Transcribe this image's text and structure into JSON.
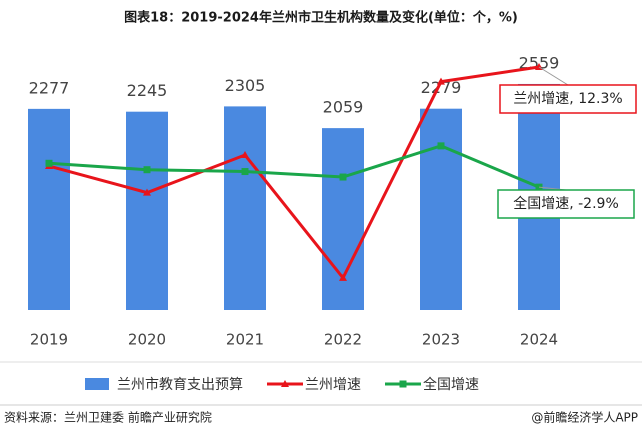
{
  "chart_data": {
    "type": "bar_line",
    "title": "图表18：2019-2024年兰州市卫生机构数量及变化(单位：个，%)",
    "categories": [
      "2019",
      "2020",
      "2021",
      "2022",
      "2023",
      "2024"
    ],
    "ylim": [
      0,
      3000
    ],
    "y2lim": [
      -14.2,
      14.7
    ],
    "y3lim": [
      -16.3,
      12.6
    ],
    "series": [
      {
        "name": "兰州市教育支出预算",
        "type": "bar",
        "color": "#4a89e0",
        "values": [
          2277,
          2245,
          2305,
          2059,
          2279,
          2559
        ]
      },
      {
        "name": "兰州增速",
        "type": "line",
        "axis": "y2",
        "marker": "triangle",
        "color": "#e8141b",
        "values": [
          1.5,
          -1.4,
          2.7,
          -10.7,
          10.7,
          12.3
        ]
      },
      {
        "name": "全国增速",
        "type": "line",
        "axis": "y3",
        "marker": "square",
        "color": "#1aa64a",
        "values": [
          -0.3,
          -1.0,
          -1.2,
          -1.8,
          1.6,
          -2.9
        ]
      }
    ],
    "annotations": [
      {
        "text": "兰州增速, 12.3%",
        "series": 1,
        "index": 5
      },
      {
        "text": "全国增速, -2.9%",
        "series": 2,
        "index": 5
      }
    ],
    "source": "资料来源：兰州卫建委 前瞻产业研究院",
    "brand": "@前瞻经济学人APP"
  }
}
